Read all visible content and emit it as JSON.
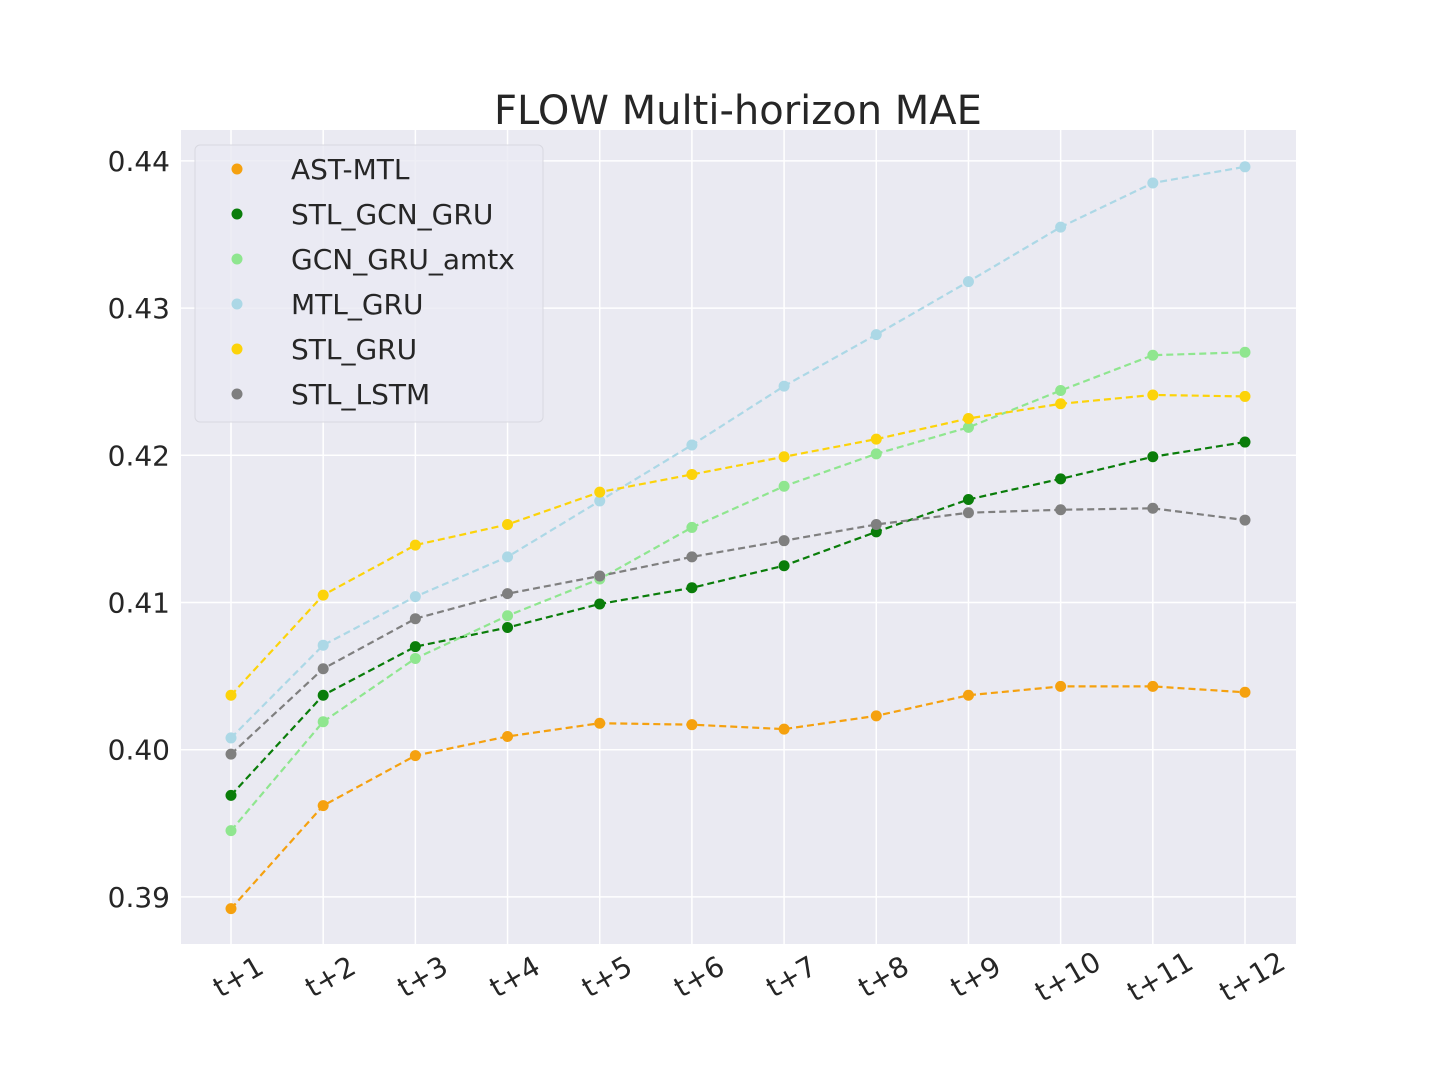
{
  "chart_data": {
    "type": "line",
    "title": "FLOW Multi-horizon MAE",
    "xlabel": "",
    "ylabel": "",
    "categories": [
      "t+1",
      "t+2",
      "t+3",
      "t+4",
      "t+5",
      "t+6",
      "t+7",
      "t+8",
      "t+9",
      "t+10",
      "t+11",
      "t+12"
    ],
    "ylim": [
      0.3868,
      0.4421
    ],
    "yticks": [
      "0.39",
      "0.40",
      "0.41",
      "0.42",
      "0.43",
      "0.44"
    ],
    "grid": true,
    "legend_position": "upper-left",
    "line_style": "dashed",
    "marker": "circle",
    "series": [
      {
        "name": "AST-MTL",
        "color": "#f5a10f",
        "values": [
          0.3892,
          0.3962,
          0.3996,
          0.4009,
          0.4018,
          0.4017,
          0.4014,
          0.4023,
          0.4037,
          0.4043,
          0.4043,
          0.4039
        ]
      },
      {
        "name": "STL_GCN_GRU",
        "color": "#0a7d0a",
        "values": [
          0.3969,
          0.4037,
          0.407,
          0.4083,
          0.4099,
          0.411,
          0.4125,
          0.4148,
          0.417,
          0.4184,
          0.4199,
          0.4209
        ]
      },
      {
        "name": "GCN_GRU_amtx",
        "color": "#8fe68f",
        "values": [
          0.3945,
          0.4019,
          0.4062,
          0.4091,
          0.4116,
          0.4151,
          0.4179,
          0.4201,
          0.4219,
          0.4244,
          0.4268,
          0.427
        ]
      },
      {
        "name": "MTL_GRU",
        "color": "#acd8e6",
        "values": [
          0.4008,
          0.4071,
          0.4104,
          0.4131,
          0.4169,
          0.4207,
          0.4247,
          0.4282,
          0.4318,
          0.4355,
          0.4385,
          0.4396
        ]
      },
      {
        "name": "STL_GRU",
        "color": "#fcd30a",
        "values": [
          0.4037,
          0.4105,
          0.4139,
          0.4153,
          0.4175,
          0.4187,
          0.4199,
          0.4211,
          0.4225,
          0.4235,
          0.4241,
          0.424
        ]
      },
      {
        "name": "STL_LSTM",
        "color": "#7f7f7f",
        "values": [
          0.3997,
          0.4055,
          0.4089,
          0.4106,
          0.4118,
          0.4131,
          0.4142,
          0.4153,
          0.4161,
          0.4163,
          0.4164,
          0.4156
        ]
      }
    ]
  }
}
